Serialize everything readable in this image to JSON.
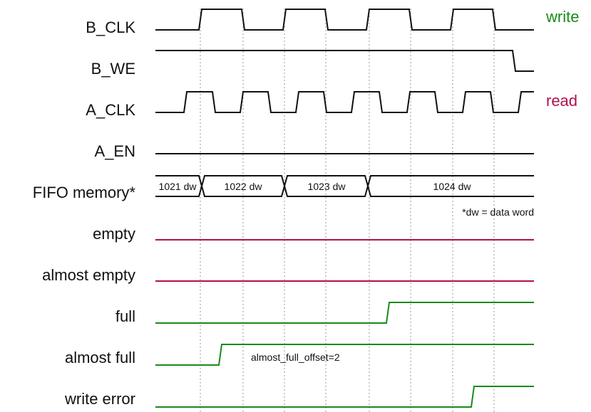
{
  "signals": [
    {
      "id": "b_clk",
      "label": "B_CLK"
    },
    {
      "id": "b_we",
      "label": "B_WE"
    },
    {
      "id": "a_clk",
      "label": "A_CLK"
    },
    {
      "id": "a_en",
      "label": "A_EN"
    },
    {
      "id": "fifo_memory",
      "label": "FIFO memory*"
    },
    {
      "id": "empty",
      "label": "empty"
    },
    {
      "id": "almost_empty",
      "label": "almost empty"
    },
    {
      "id": "full",
      "label": "full"
    },
    {
      "id": "almost_full",
      "label": "almost full"
    },
    {
      "id": "write_error",
      "label": "write error"
    }
  ],
  "side_labels": {
    "write": "write",
    "read": "read"
  },
  "fifo_segments": [
    {
      "text": "1021 dw"
    },
    {
      "text": "1022 dw"
    },
    {
      "text": "1023 dw"
    },
    {
      "text": "1024 dw"
    }
  ],
  "notes": {
    "dw_note": "*dw = data word",
    "almost_full_note": "almost_full_offset=2"
  },
  "colors": {
    "write": "#1a8a1a",
    "read": "#b0104e",
    "signal": "#111111",
    "grid": "#9a9a9a"
  }
}
